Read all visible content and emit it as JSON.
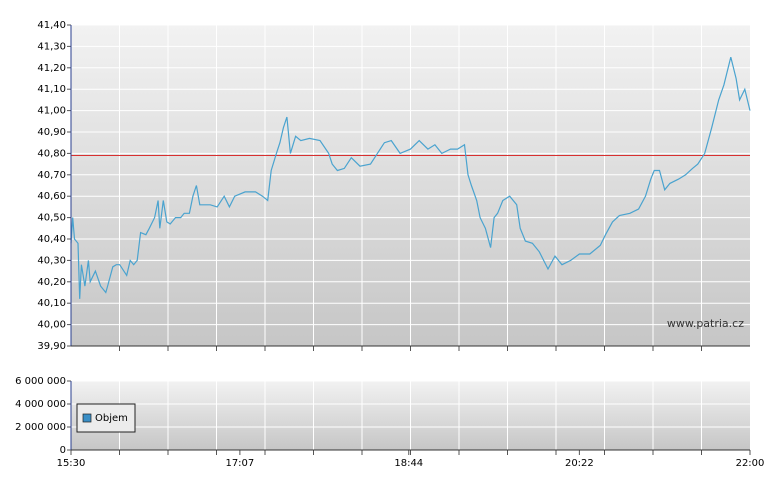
{
  "chart_data": [
    {
      "type": "line",
      "x": [
        "15:30",
        "15:31",
        "15:32",
        "15:34",
        "15:35",
        "15:36",
        "15:38",
        "15:40",
        "15:41",
        "15:44",
        "15:47",
        "15:50",
        "15:51",
        "15:54",
        "15:56",
        "15:58",
        "16:02",
        "16:04",
        "16:06",
        "16:08",
        "16:10",
        "16:13",
        "16:15",
        "16:18",
        "16:20",
        "16:21",
        "16:23",
        "16:25",
        "16:27",
        "16:30",
        "16:33",
        "16:35",
        "16:38",
        "16:40",
        "16:42",
        "16:44",
        "16:50",
        "16:54",
        "16:58",
        "17:01",
        "17:04",
        "17:10",
        "17:16",
        "17:20",
        "17:23",
        "17:25",
        "17:28",
        "17:30",
        "17:32",
        "17:34",
        "17:36",
        "17:39",
        "17:42",
        "17:47",
        "17:53",
        "17:58",
        "18:00",
        "18:03",
        "18:07",
        "18:11",
        "18:16",
        "18:22",
        "18:26",
        "18:30",
        "18:34",
        "18:39",
        "18:45",
        "18:50",
        "18:55",
        "18:59",
        "19:03",
        "19:08",
        "19:12",
        "19:16",
        "19:18",
        "19:20",
        "19:23",
        "19:25",
        "19:28",
        "19:31",
        "19:33",
        "19:35",
        "19:38",
        "19:42",
        "19:46",
        "19:48",
        "19:51",
        "19:55",
        "19:59",
        "20:04",
        "20:08",
        "20:12",
        "20:17",
        "20:22",
        "20:28",
        "20:34",
        "20:37",
        "20:41",
        "20:45",
        "20:51",
        "20:56",
        "21:00",
        "21:03",
        "21:05",
        "21:08",
        "21:11",
        "21:14",
        "21:19",
        "21:23",
        "21:27",
        "21:30",
        "21:34",
        "21:38",
        "21:42",
        "21:45",
        "21:49",
        "21:52",
        "21:54",
        "21:57",
        "22:00"
      ],
      "series": [
        {
          "color": "#4aa3cf",
          "values": [
            40.38,
            40.5,
            40.4,
            40.38,
            40.12,
            40.28,
            40.18,
            40.3,
            40.2,
            40.25,
            40.18,
            40.15,
            40.18,
            40.27,
            40.28,
            40.28,
            40.23,
            40.3,
            40.28,
            40.3,
            40.43,
            40.42,
            40.45,
            40.5,
            40.58,
            40.45,
            40.58,
            40.48,
            40.47,
            40.5,
            40.5,
            40.52,
            40.52,
            40.6,
            40.65,
            40.56,
            40.56,
            40.55,
            40.6,
            40.55,
            40.6,
            40.62,
            40.62,
            40.6,
            40.58,
            40.72,
            40.8,
            40.85,
            40.92,
            40.97,
            40.8,
            40.88,
            40.86,
            40.87,
            40.86,
            40.8,
            40.75,
            40.72,
            40.73,
            40.78,
            40.74,
            40.75,
            40.8,
            40.85,
            40.86,
            40.8,
            40.82,
            40.86,
            40.82,
            40.84,
            40.8,
            40.82,
            40.82,
            40.84,
            40.7,
            40.65,
            40.58,
            40.5,
            40.45,
            40.36,
            40.5,
            40.52,
            40.58,
            40.6,
            40.56,
            40.45,
            40.39,
            40.38,
            40.34,
            40.26,
            40.32,
            40.28,
            40.3,
            40.33,
            40.33,
            40.37,
            40.42,
            40.48,
            40.51,
            40.52,
            40.54,
            40.6,
            40.68,
            40.72,
            40.72,
            40.63,
            40.66,
            40.68,
            40.7,
            40.73,
            40.75,
            40.8,
            40.92,
            41.05,
            41.12,
            41.25,
            41.15,
            41.05,
            41.1,
            41.0
          ]
        }
      ],
      "xlim": [
        "15:30",
        "22:00"
      ],
      "ylim": [
        39.9,
        41.4
      ],
      "yticks": [
        {
          "value": 39.9,
          "label": "39,90"
        },
        {
          "value": 40,
          "label": "40,00"
        },
        {
          "value": 40.1,
          "label": "40,10"
        },
        {
          "value": 40.2,
          "label": "40,20"
        },
        {
          "value": 40.3,
          "label": "40,30"
        },
        {
          "value": 40.4,
          "label": "40,40"
        },
        {
          "value": 40.5,
          "label": "40,50"
        },
        {
          "value": 40.6,
          "label": "40,60"
        },
        {
          "value": 40.7,
          "label": "40,70"
        },
        {
          "value": 40.8,
          "label": "40,80"
        },
        {
          "value": 40.9,
          "label": "40,90"
        },
        {
          "value": 41,
          "label": "41,00"
        },
        {
          "value": 41.1,
          "label": "41,10"
        },
        {
          "value": 41.2,
          "label": "41,20"
        },
        {
          "value": 41.3,
          "label": "41,30"
        },
        {
          "value": 41.4,
          "label": "41,40"
        }
      ],
      "hlines": [
        {
          "value": 40.79,
          "color": "#d83030"
        }
      ],
      "annotation": "www.patria.cz",
      "grid": true
    },
    {
      "type": "bar",
      "series": [
        {
          "name": "Objem",
          "color": "#3a8fc7"
        }
      ],
      "xlim": [
        "15:30",
        "22:00"
      ],
      "xticks": [
        "15:30",
        "17:07",
        "18:44",
        "20:22",
        "22:00"
      ],
      "ylim": [
        0,
        6000000
      ],
      "yticks": [
        0,
        {
          "value": 2000000,
          "label": "2 000 000"
        },
        {
          "value": 4000000,
          "label": "4 000 000"
        },
        {
          "value": 6000000,
          "label": "6 000 000"
        }
      ],
      "legend": "lower left",
      "grid": true
    }
  ]
}
